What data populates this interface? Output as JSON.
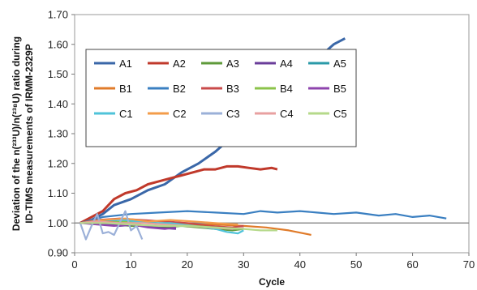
{
  "chart_data": {
    "type": "line",
    "xlabel": "Cycle",
    "ylabel_lines": [
      "Deviation of the n(²³³U)/n(²³⁸U) ratio during",
      "ID-TIMS measurements of IRMM-2329P"
    ],
    "xlim": [
      0,
      70
    ],
    "ylim": [
      0.9,
      1.7
    ],
    "x_ticks": [
      "0",
      "10",
      "20",
      "30",
      "40",
      "50",
      "60",
      "70"
    ],
    "y_ticks": [
      "0.90",
      "1.00",
      "1.10",
      "1.20",
      "1.30",
      "1.40",
      "1.50",
      "1.60",
      "1.70"
    ],
    "reference_line": 1.0,
    "grid": false,
    "legend_position": "upper-left",
    "legend_columns": 5,
    "series": [
      {
        "name": "A1",
        "color": "#3a67a8",
        "x": [
          1,
          3,
          5,
          7,
          10,
          13,
          16,
          19,
          22,
          25,
          28,
          31,
          34,
          37,
          40,
          43,
          46,
          48
        ],
        "y": [
          1.0,
          1.01,
          1.03,
          1.06,
          1.08,
          1.11,
          1.13,
          1.17,
          1.2,
          1.24,
          1.29,
          1.35,
          1.4,
          1.45,
          1.5,
          1.55,
          1.6,
          1.62
        ]
      },
      {
        "name": "A2",
        "color": "#c0392b",
        "x": [
          1,
          3,
          5,
          7,
          9,
          11,
          13,
          15,
          17,
          19,
          21,
          23,
          25,
          27,
          29,
          31,
          33,
          35,
          36
        ],
        "y": [
          1.0,
          1.02,
          1.04,
          1.08,
          1.1,
          1.11,
          1.13,
          1.14,
          1.15,
          1.16,
          1.17,
          1.18,
          1.18,
          1.19,
          1.19,
          1.185,
          1.18,
          1.185,
          1.18
        ]
      },
      {
        "name": "A3",
        "color": "#5e9a3a",
        "x": [
          1,
          4,
          7,
          10,
          13,
          16,
          19,
          22,
          25,
          28,
          30
        ],
        "y": [
          1.0,
          1.0,
          0.995,
          0.99,
          0.99,
          0.985,
          0.99,
          0.985,
          0.98,
          0.975,
          0.98
        ]
      },
      {
        "name": "A4",
        "color": "#6a3d9a",
        "x": [
          1,
          3,
          5,
          8,
          11,
          14,
          18
        ],
        "y": [
          1.0,
          1.005,
          1.0,
          0.99,
          0.995,
          0.985,
          0.98
        ]
      },
      {
        "name": "A5",
        "color": "#2a9aa8",
        "x": [
          1,
          4,
          7,
          10,
          13,
          16,
          19,
          22,
          25,
          28,
          30
        ],
        "y": [
          1.0,
          1.01,
          1.005,
          1.0,
          1.005,
          0.995,
          1.0,
          0.99,
          0.985,
          0.98,
          0.985
        ]
      },
      {
        "name": "B1",
        "color": "#e07b2a",
        "x": [
          1,
          5,
          10,
          15,
          20,
          25,
          30,
          34,
          38,
          42
        ],
        "y": [
          1.0,
          1.005,
          1.0,
          1.0,
          0.995,
          0.995,
          0.99,
          0.985,
          0.975,
          0.96
        ]
      },
      {
        "name": "B2",
        "color": "#3a7fc1",
        "x": [
          1,
          5,
          10,
          15,
          20,
          25,
          30,
          33,
          36,
          40,
          43,
          46,
          50,
          54,
          57,
          60,
          63,
          66
        ],
        "y": [
          1.0,
          1.02,
          1.03,
          1.035,
          1.04,
          1.035,
          1.03,
          1.04,
          1.035,
          1.04,
          1.035,
          1.03,
          1.035,
          1.025,
          1.03,
          1.02,
          1.025,
          1.015
        ]
      },
      {
        "name": "B3",
        "color": "#c94a4a",
        "x": [
          1,
          4,
          8,
          12,
          16,
          20,
          24,
          28,
          30
        ],
        "y": [
          1.0,
          1.01,
          1.015,
          1.01,
          1.005,
          1.0,
          0.99,
          0.985,
          0.99
        ]
      },
      {
        "name": "B4",
        "color": "#8bc34a",
        "x": [
          1,
          5,
          9,
          13,
          17,
          21,
          25,
          29
        ],
        "y": [
          1.0,
          1.0,
          1.005,
          1.0,
          0.995,
          0.99,
          0.985,
          0.98
        ]
      },
      {
        "name": "B5",
        "color": "#8e44ad",
        "x": [
          1,
          4,
          7,
          10,
          13,
          16,
          18
        ],
        "y": [
          1.0,
          0.995,
          0.99,
          0.995,
          0.985,
          0.98,
          0.985
        ]
      },
      {
        "name": "C1",
        "color": "#4fc3d9",
        "x": [
          1,
          5,
          9,
          13,
          17,
          21,
          25,
          27,
          29,
          30
        ],
        "y": [
          1.0,
          1.01,
          1.01,
          1.0,
          1.0,
          0.99,
          0.98,
          0.97,
          0.965,
          0.975
        ]
      },
      {
        "name": "C2",
        "color": "#f39c4a",
        "x": [
          1,
          5,
          9,
          13,
          17,
          21,
          25,
          29
        ],
        "y": [
          1.0,
          1.01,
          1.015,
          1.005,
          1.01,
          1.005,
          1.0,
          0.995
        ]
      },
      {
        "name": "C3",
        "color": "#9bb0d8",
        "x": [
          1,
          2,
          3,
          4,
          5,
          6,
          7,
          8,
          9,
          10,
          11,
          12
        ],
        "y": [
          1.0,
          0.945,
          0.99,
          1.03,
          0.965,
          0.97,
          0.96,
          1.0,
          1.04,
          0.975,
          0.99,
          0.945
        ]
      },
      {
        "name": "C4",
        "color": "#e8a0a0",
        "x": [
          1,
          4,
          8,
          12,
          16,
          20,
          24,
          28,
          30
        ],
        "y": [
          1.0,
          1.005,
          1.0,
          1.0,
          0.995,
          0.99,
          0.985,
          0.98,
          0.985
        ]
      },
      {
        "name": "C5",
        "color": "#b5d98a",
        "x": [
          1,
          5,
          10,
          15,
          20,
          25,
          30,
          33,
          36
        ],
        "y": [
          1.0,
          1.0,
          0.995,
          0.99,
          0.99,
          0.985,
          0.98,
          0.975,
          0.975
        ]
      }
    ]
  }
}
